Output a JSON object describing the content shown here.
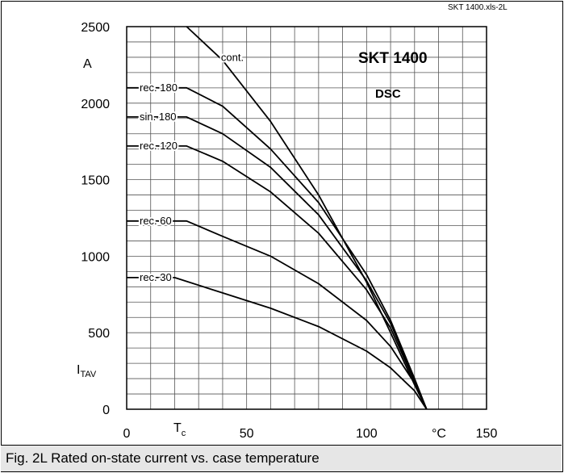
{
  "file_tag": "SKT 1400.xls-2L",
  "caption": "Fig. 2L Rated on-state current vs. case temperature",
  "chart_data": {
    "type": "line",
    "title": "SKT 1400",
    "subtitle": "DSC",
    "ylabel_unit": "A",
    "ylabel_main": "I",
    "ylabel_sub": "TAV",
    "xlabel_main": "T",
    "xlabel_sub": "c",
    "x_unit": "°C",
    "xlim": [
      0,
      150
    ],
    "ylim": [
      0,
      2500
    ],
    "grid": true,
    "x_tick_labels": [
      {
        "value": 0,
        "text": "0"
      },
      {
        "value": 50,
        "text": "50"
      },
      {
        "value": 100,
        "text": "100"
      },
      {
        "value": 150,
        "text": "150"
      }
    ],
    "y_tick_labels": [
      {
        "value": 0,
        "text": "0"
      },
      {
        "value": 500,
        "text": "500"
      },
      {
        "value": 1000,
        "text": "1000"
      },
      {
        "value": 1500,
        "text": "1500"
      },
      {
        "value": 2000,
        "text": "2000"
      },
      {
        "value": 2500,
        "text": "2500"
      }
    ],
    "series": [
      {
        "name": "cont.",
        "x": [
          25,
          40,
          60,
          80,
          100,
          110,
          120,
          125
        ],
        "y": [
          2500,
          2280,
          1880,
          1400,
          830,
          500,
          160,
          0
        ]
      },
      {
        "name": "rec. 180",
        "x": [
          0,
          25,
          40,
          60,
          80,
          100,
          110,
          120,
          125
        ],
        "y": [
          2100,
          2100,
          1980,
          1700,
          1350,
          880,
          580,
          200,
          0
        ]
      },
      {
        "name": "sin. 180",
        "x": [
          0,
          25,
          40,
          60,
          80,
          100,
          110,
          120,
          125
        ],
        "y": [
          1910,
          1910,
          1800,
          1580,
          1270,
          840,
          560,
          190,
          0
        ]
      },
      {
        "name": "rec. 120",
        "x": [
          0,
          25,
          40,
          60,
          80,
          100,
          110,
          120,
          125
        ],
        "y": [
          1720,
          1720,
          1620,
          1420,
          1150,
          780,
          530,
          180,
          0
        ]
      },
      {
        "name": "rec. 60",
        "x": [
          0,
          25,
          40,
          60,
          80,
          100,
          110,
          120,
          125
        ],
        "y": [
          1230,
          1230,
          1130,
          1000,
          820,
          580,
          410,
          170,
          0
        ]
      },
      {
        "name": "rec. 30",
        "x": [
          0,
          20,
          40,
          60,
          80,
          100,
          110,
          120,
          125
        ],
        "y": [
          860,
          860,
          760,
          660,
          540,
          380,
          270,
          120,
          0
        ]
      }
    ]
  }
}
